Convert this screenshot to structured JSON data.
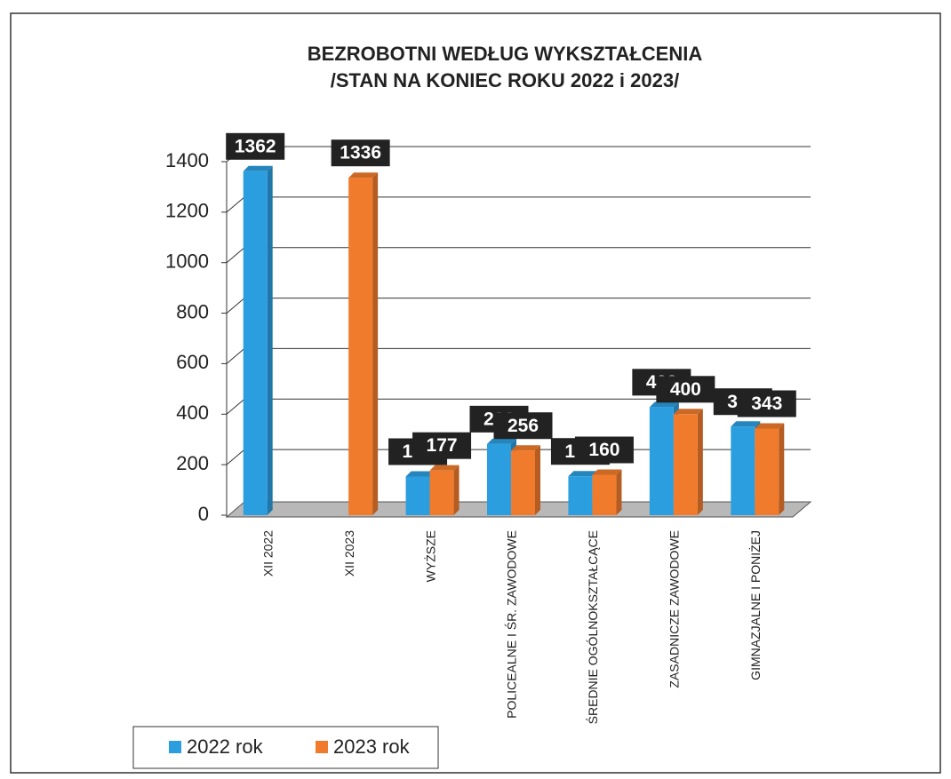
{
  "chart_data": {
    "type": "bar",
    "title": [
      "BEZROBOTNI WEDŁUG WYKSZTAŁCENIA",
      "/STAN NA KONIEC ROKU 2022 i 2023/"
    ],
    "categories": [
      "XII 2022",
      "XII 2023",
      "WYŻSZE",
      "POLICEALNE I ŚR. ZAWODOWE",
      "ŚREDNIE OGÓLNOKSZTAŁCĄCE",
      "ZASADNICZE ZAWODOWE",
      "GIMNAZJALNE I PONIŻEJ"
    ],
    "series": [
      {
        "name": "2022 rok",
        "color": "#2b9ee0",
        "values": [
          1362,
          null,
          153,
          282,
          154,
          428,
          351
        ]
      },
      {
        "name": "2023 rok",
        "color": "#f07b2c",
        "values": [
          null,
          1336,
          177,
          256,
          160,
          400,
          343
        ]
      }
    ],
    "ylim": [
      0,
      1400
    ],
    "yticks": [
      0,
      200,
      400,
      600,
      800,
      1000,
      1200,
      1400
    ],
    "grid": true,
    "legend": "bottom-left"
  }
}
